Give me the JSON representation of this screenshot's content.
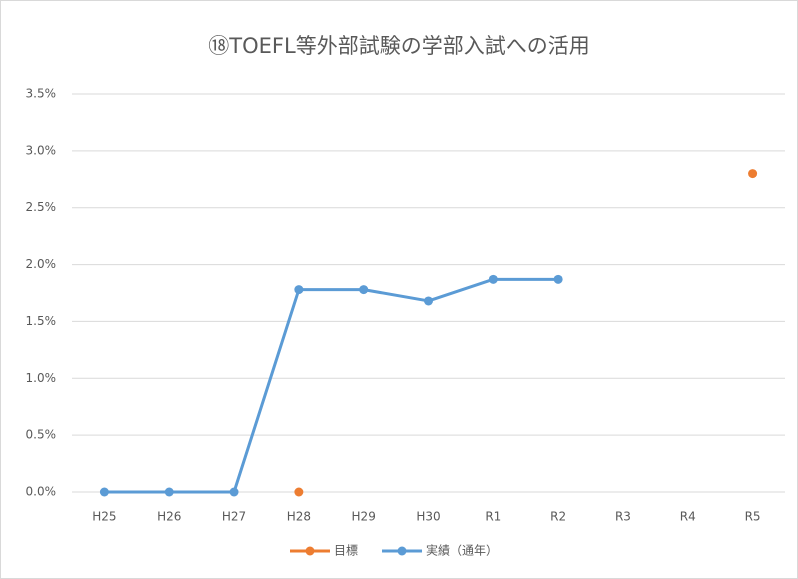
{
  "chart_data": {
    "type": "line",
    "title": "⑱TOEFL等外部試験の学部入試への活用",
    "categories": [
      "H25",
      "H26",
      "H27",
      "H28",
      "H29",
      "H30",
      "R1",
      "R2",
      "R3",
      "R4",
      "R5"
    ],
    "series": [
      {
        "name": "目標",
        "color": "#ed7d31",
        "values": [
          null,
          null,
          null,
          0,
          null,
          null,
          null,
          null,
          null,
          null,
          2.8
        ]
      },
      {
        "name": "実績（通年）",
        "color": "#5b9bd5",
        "values": [
          0,
          0,
          0,
          1.78,
          1.78,
          1.68,
          1.87,
          1.87,
          null,
          null,
          null
        ]
      }
    ],
    "ylim": [
      0,
      3.5
    ],
    "yticks": [
      {
        "value": 0,
        "label": "0.0%"
      },
      {
        "value": 0.5,
        "label": "0.5%"
      },
      {
        "value": 1,
        "label": "1.0%"
      },
      {
        "value": 1.5,
        "label": "1.5%"
      },
      {
        "value": 2,
        "label": "2.0%"
      },
      {
        "value": 2.5,
        "label": "2.5%"
      },
      {
        "value": 3,
        "label": "3.0%"
      },
      {
        "value": 3.5,
        "label": "3.5%"
      }
    ],
    "grid": true,
    "legend": "bottom"
  }
}
